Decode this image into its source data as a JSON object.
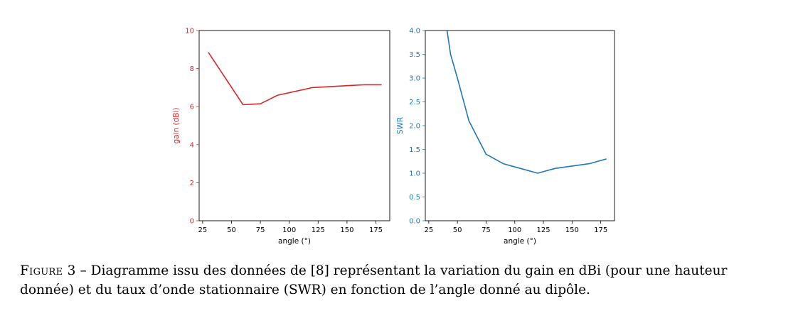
{
  "caption": {
    "label": "Figure 3",
    "separator": " – ",
    "text": "Diagramme issu des données de [8] représentant la variation du gain en dBi (pour une hauteur donnée) et du taux d’onde stationnaire (SWR) en fonction de l’angle donné au dipôle."
  },
  "chart_data": [
    {
      "type": "line",
      "xlabel": "angle (°)",
      "ylabel": "gain (dBi)",
      "xlim": [
        22,
        187
      ],
      "ylim": [
        0,
        10
      ],
      "xticks": [
        25,
        50,
        75,
        100,
        125,
        150,
        175
      ],
      "yticks": [
        0,
        2,
        4,
        6,
        8,
        10
      ],
      "ytick_labels": [
        "0",
        "2",
        "4",
        "6",
        "8",
        "10"
      ],
      "axis_color": "#d62728",
      "series": [
        {
          "color": "#d62728",
          "x": [
            30,
            60,
            75,
            90,
            105,
            120,
            135,
            150,
            165,
            180
          ],
          "y": [
            8.85,
            6.1,
            6.15,
            6.6,
            6.8,
            7.0,
            7.05,
            7.1,
            7.15,
            7.15
          ]
        }
      ]
    },
    {
      "type": "line",
      "xlabel": "angle (°)",
      "ylabel": "SWR",
      "xlim": [
        22,
        187
      ],
      "ylim": [
        0,
        4
      ],
      "xticks": [
        25,
        50,
        75,
        100,
        125,
        150,
        175
      ],
      "yticks": [
        0,
        0.5,
        1,
        1.5,
        2,
        2.5,
        3,
        3.5,
        4
      ],
      "ytick_labels": [
        "0.0",
        "0.5",
        "1.0",
        "1.5",
        "2.0",
        "2.5",
        "3.0",
        "3.5",
        "4.0"
      ],
      "axis_color": "#1f77b4",
      "series": [
        {
          "color": "#1f77b4",
          "x": [
            41,
            44,
            50,
            60,
            75,
            90,
            105,
            120,
            135,
            150,
            165,
            180
          ],
          "y": [
            4.0,
            3.5,
            3.0,
            2.1,
            1.4,
            1.2,
            1.1,
            1.0,
            1.1,
            1.15,
            1.2,
            1.3
          ]
        }
      ]
    }
  ]
}
